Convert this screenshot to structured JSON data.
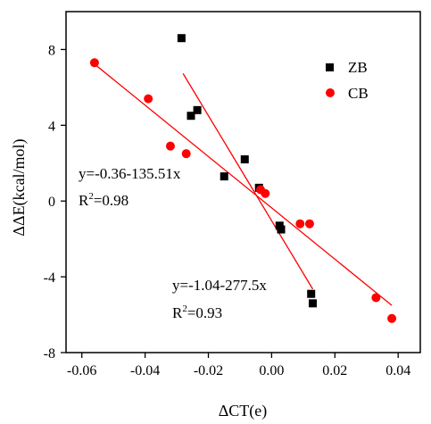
{
  "chart_data": {
    "type": "scatter",
    "xlabel": "ΔCT(e)",
    "ylabel": "ΔΔE(kcal/mol)",
    "xlim": [
      -0.065,
      0.047
    ],
    "ylim": [
      -8,
      10
    ],
    "xticks": [
      -0.06,
      -0.04,
      -0.02,
      0.0,
      0.02,
      0.04
    ],
    "xtick_labels": [
      "-0.06",
      "-0.04",
      "-0.02",
      "0.00",
      "0.02",
      "0.04"
    ],
    "yticks": [
      -8,
      -4,
      0,
      4,
      8
    ],
    "ytick_labels": [
      "-8",
      "-4",
      "0",
      "4",
      "8"
    ],
    "grid": false,
    "legend_position": "top-right",
    "series": [
      {
        "name": "ZB",
        "marker": "square",
        "color": "#000000",
        "x": [
          -0.0285,
          -0.0255,
          -0.0235,
          -0.015,
          -0.0085,
          -0.004,
          0.0025,
          0.003,
          0.0125,
          0.013
        ],
        "y": [
          8.6,
          4.5,
          4.8,
          1.3,
          2.2,
          0.7,
          -1.3,
          -1.5,
          -4.9,
          -5.4
        ]
      },
      {
        "name": "CB",
        "marker": "circle",
        "color": "#ff0000",
        "x": [
          -0.056,
          -0.039,
          -0.032,
          -0.027,
          -0.0035,
          -0.002,
          0.009,
          0.012,
          0.033,
          0.038
        ],
        "y": [
          7.3,
          5.4,
          2.9,
          2.5,
          0.6,
          0.4,
          -1.2,
          -1.2,
          -5.1,
          -6.2
        ]
      }
    ],
    "fits": [
      {
        "series": "ZB",
        "color": "#ff0000",
        "intercept": -1.04,
        "slope": -277.5,
        "x_range": [
          -0.028,
          0.013
        ]
      },
      {
        "series": "CB",
        "color": "#ff0000",
        "intercept": -0.36,
        "slope": -135.51,
        "x_range": [
          -0.056,
          0.038
        ]
      }
    ],
    "annotations": [
      {
        "line1": "y=-0.36-135.51x",
        "r2_prefix": "R",
        "r2_sup": "2",
        "r2_suffix": "=0.98"
      },
      {
        "line1": "y=-1.04-277.5x",
        "r2_prefix": "R",
        "r2_sup": "2",
        "r2_suffix": "=0.93"
      }
    ]
  }
}
